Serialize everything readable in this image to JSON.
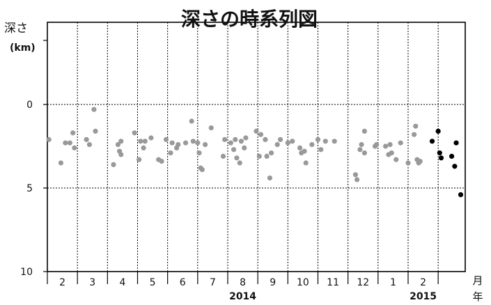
{
  "chart_data": {
    "type": "scatter",
    "title": "深さの時系列図",
    "ylabel": "深さ",
    "yunit": "(km)",
    "ylim": [
      0,
      10
    ],
    "y_inverted": true,
    "yticks": [
      0,
      5,
      10
    ],
    "y_extra_tick_top": true,
    "grid": "dotted",
    "x_unit_month": "月",
    "x_unit_year": "年",
    "months": [
      {
        "label": "2"
      },
      {
        "label": "3"
      },
      {
        "label": "4"
      },
      {
        "label": "5"
      },
      {
        "label": "6"
      },
      {
        "label": "7"
      },
      {
        "label": "8"
      },
      {
        "label": "9"
      },
      {
        "label": "10"
      },
      {
        "label": "11"
      },
      {
        "label": "12"
      },
      {
        "label": "1"
      },
      {
        "label": "2"
      }
    ],
    "years": [
      {
        "label": "2014",
        "month_index": 6
      },
      {
        "label": "2015",
        "month_index": 12
      }
    ],
    "xlim_months": [
      -0.5,
      13.4
    ],
    "series": [
      {
        "color": "#999999",
        "points": [
          [
            -0.45,
            2.1
          ],
          [
            -0.05,
            3.5
          ],
          [
            0.1,
            2.3
          ],
          [
            0.25,
            2.3
          ],
          [
            0.35,
            1.7
          ],
          [
            0.4,
            2.6
          ],
          [
            0.8,
            2.1
          ],
          [
            0.9,
            2.4
          ],
          [
            1.05,
            0.3
          ],
          [
            1.1,
            1.6
          ],
          [
            1.7,
            3.6
          ],
          [
            1.85,
            2.4
          ],
          [
            1.9,
            2.8
          ],
          [
            1.95,
            3.0
          ],
          [
            1.95,
            2.2
          ],
          [
            2.4,
            1.7
          ],
          [
            2.55,
            3.3
          ],
          [
            2.6,
            2.2
          ],
          [
            2.7,
            2.6
          ],
          [
            2.75,
            2.2
          ],
          [
            2.95,
            2.0
          ],
          [
            3.2,
            3.3
          ],
          [
            3.3,
            3.4
          ],
          [
            3.45,
            2.1
          ],
          [
            3.6,
            2.9
          ],
          [
            3.65,
            2.3
          ],
          [
            3.8,
            2.6
          ],
          [
            3.85,
            2.4
          ],
          [
            4.1,
            2.3
          ],
          [
            4.3,
            1.0
          ],
          [
            4.35,
            2.2
          ],
          [
            4.5,
            2.3
          ],
          [
            4.55,
            2.9
          ],
          [
            4.6,
            3.8
          ],
          [
            4.65,
            3.9
          ],
          [
            4.75,
            2.4
          ],
          [
            4.95,
            1.4
          ],
          [
            5.35,
            3.1
          ],
          [
            5.4,
            2.1
          ],
          [
            5.6,
            2.3
          ],
          [
            5.7,
            2.7
          ],
          [
            5.75,
            2.1
          ],
          [
            5.8,
            3.2
          ],
          [
            5.9,
            3.5
          ],
          [
            5.95,
            2.2
          ],
          [
            6.05,
            2.6
          ],
          [
            6.1,
            2.0
          ],
          [
            6.45,
            1.6
          ],
          [
            6.55,
            3.1
          ],
          [
            6.6,
            1.8
          ],
          [
            6.75,
            2.1
          ],
          [
            6.8,
            3.1
          ],
          [
            6.9,
            4.4
          ],
          [
            6.95,
            2.9
          ],
          [
            7.15,
            2.4
          ],
          [
            7.25,
            2.1
          ],
          [
            7.5,
            2.3
          ],
          [
            7.65,
            2.2
          ],
          [
            7.9,
            2.6
          ],
          [
            7.95,
            2.9
          ],
          [
            8.05,
            2.8
          ],
          [
            8.1,
            3.5
          ],
          [
            8.3,
            2.4
          ],
          [
            8.5,
            2.1
          ],
          [
            8.6,
            2.7
          ],
          [
            8.75,
            2.2
          ],
          [
            9.05,
            2.2
          ],
          [
            9.75,
            4.2
          ],
          [
            9.8,
            4.5
          ],
          [
            9.9,
            2.7
          ],
          [
            9.95,
            2.4
          ],
          [
            10.05,
            1.6
          ],
          [
            10.05,
            2.9
          ],
          [
            10.4,
            2.5
          ],
          [
            10.45,
            2.4
          ],
          [
            10.75,
            2.5
          ],
          [
            10.85,
            3.0
          ],
          [
            10.9,
            2.4
          ],
          [
            10.95,
            2.9
          ],
          [
            11.1,
            3.3
          ],
          [
            11.25,
            2.3
          ],
          [
            11.5,
            3.5
          ],
          [
            11.7,
            1.8
          ],
          [
            11.75,
            1.3
          ],
          [
            11.8,
            3.3
          ],
          [
            11.85,
            3.5
          ],
          [
            11.9,
            3.4
          ]
        ]
      },
      {
        "color": "#000000",
        "points": [
          [
            12.3,
            2.2
          ],
          [
            12.5,
            1.6
          ],
          [
            12.55,
            2.9
          ],
          [
            12.6,
            3.2
          ],
          [
            12.95,
            3.1
          ],
          [
            13.05,
            3.7
          ],
          [
            13.1,
            2.3
          ],
          [
            13.25,
            5.4
          ]
        ]
      }
    ]
  }
}
